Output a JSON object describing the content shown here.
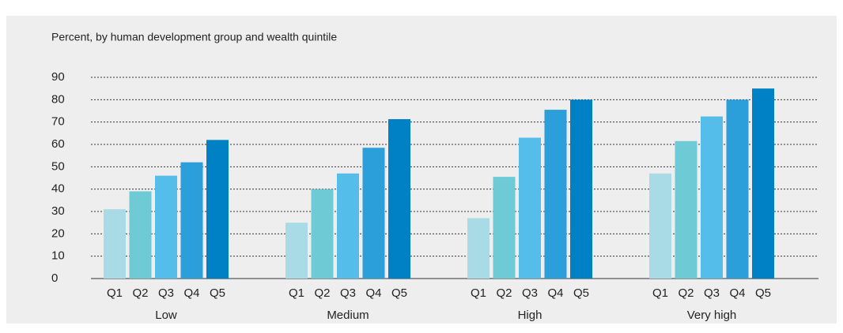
{
  "chart_data": {
    "type": "bar",
    "subtitle": "Percent, by human development group and wealth quintile",
    "categories": [
      "Low",
      "Medium",
      "High",
      "Very high"
    ],
    "series": [
      {
        "name": "Q1",
        "color": "#a8dbe6",
        "values": [
          31,
          25,
          27,
          47
        ]
      },
      {
        "name": "Q2",
        "color": "#6ecbd6",
        "values": [
          39,
          40,
          45.5,
          61.5
        ]
      },
      {
        "name": "Q3",
        "color": "#55bde9",
        "values": [
          46,
          47,
          63,
          72.5
        ]
      },
      {
        "name": "Q4",
        "color": "#2b9fd9",
        "values": [
          52,
          58.5,
          75.5,
          80
        ]
      },
      {
        "name": "Q5",
        "color": "#0081c6",
        "values": [
          62,
          71.3,
          80,
          85
        ]
      }
    ],
    "ylim": [
      0,
      90
    ],
    "yticks": [
      0,
      10,
      20,
      30,
      40,
      50,
      60,
      70,
      80,
      90
    ],
    "grid": true
  }
}
